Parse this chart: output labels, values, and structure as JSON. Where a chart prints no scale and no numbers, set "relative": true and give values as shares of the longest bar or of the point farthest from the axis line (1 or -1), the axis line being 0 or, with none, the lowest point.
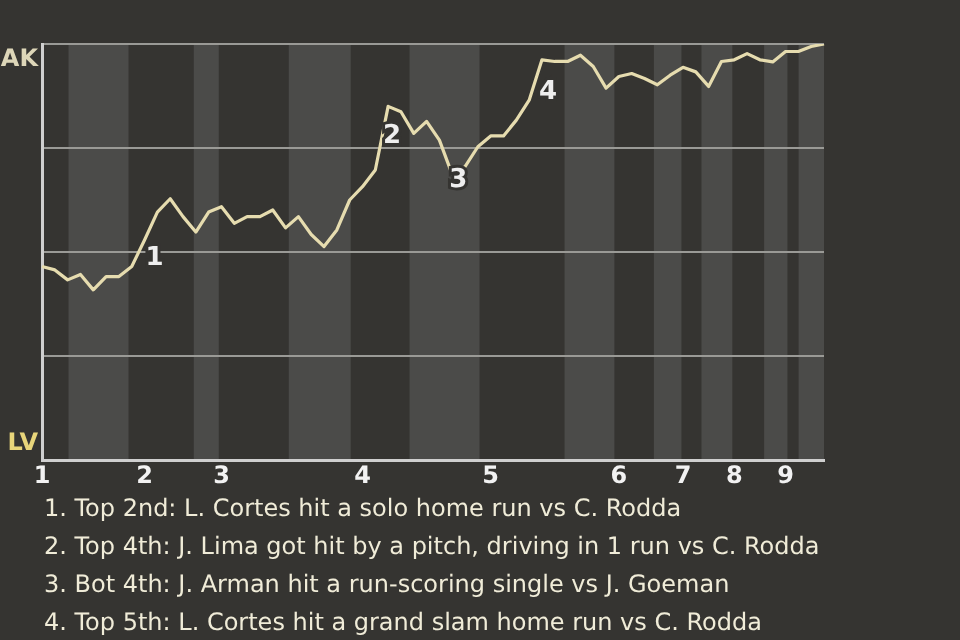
{
  "chart_data": {
    "type": "line",
    "color": "#e6dcaf",
    "relative": true,
    "categories": [
      "1",
      null,
      null,
      null,
      null,
      null,
      null,
      null,
      "2",
      null,
      null,
      null,
      null,
      null,
      "3",
      null,
      null,
      null,
      null,
      null,
      null,
      null,
      null,
      null,
      null,
      "4",
      null,
      null,
      null,
      null,
      null,
      null,
      null,
      null,
      null,
      "5",
      null,
      null,
      null,
      null,
      null,
      null,
      null,
      null,
      null,
      "6",
      null,
      null,
      null,
      null,
      "7",
      null,
      null,
      null,
      "8",
      null,
      null,
      null,
      "9",
      null,
      null,
      null
    ],
    "values": [
      0.465,
      0.457,
      0.433,
      0.446,
      0.409,
      0.441,
      0.441,
      0.465,
      0.529,
      0.596,
      0.628,
      0.585,
      0.548,
      0.596,
      0.609,
      0.569,
      0.585,
      0.585,
      0.601,
      0.558,
      0.585,
      0.542,
      0.513,
      0.553,
      0.625,
      0.657,
      0.697,
      0.85,
      0.837,
      0.785,
      0.814,
      0.769,
      0.686,
      0.705,
      0.753,
      0.779,
      0.779,
      0.817,
      0.865,
      0.962,
      0.958,
      0.958,
      0.973,
      0.946,
      0.894,
      0.922,
      0.929,
      0.917,
      0.902,
      0.925,
      0.944,
      0.933,
      0.898,
      0.958,
      0.962,
      0.977,
      0.962,
      0.957,
      0.982,
      0.982,
      0.994,
      1
    ],
    "grid": "y",
    "legend": false,
    "marker": "none",
    "line_style": "solid",
    "annotations": [
      "AK",
      "LV",
      "1",
      "2",
      "3",
      "4",
      "1. Top 2nd: L. Cortes hit a solo home run vs C. Rodda",
      "2. Top 4th: J. Lima got hit by a pitch, driving in 1 run vs C. Rodda",
      "3. Bot 4th: J. Arman hit a run-scoring single vs J. Goeman",
      "4. Top 5th: L. Cortes hit a grand slam home run vs C. Rodda"
    ]
  }
}
